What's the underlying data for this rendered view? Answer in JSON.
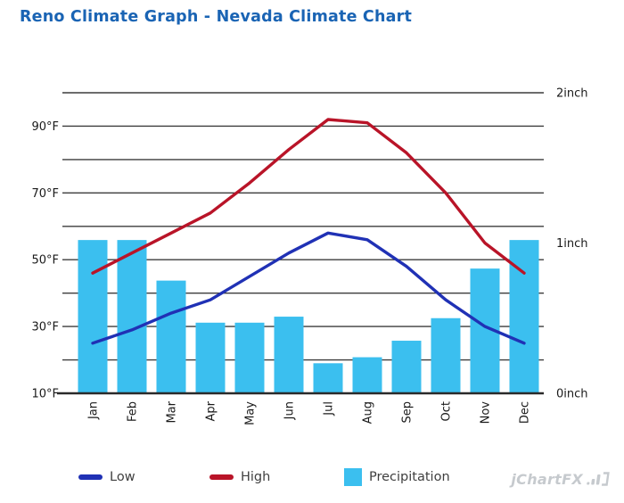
{
  "title": "Reno Climate Graph - Nevada Climate Chart",
  "legend": {
    "low_label": "Low",
    "high_label": "High",
    "precip_label": "Precipitation"
  },
  "branding": {
    "logo_text": "jChartFX"
  },
  "colors": {
    "title": "#1A64B4",
    "high_line": "#B91428",
    "low_line": "#2031B5",
    "bar": "#3BBFEF",
    "grid": "#3C3C3C",
    "axis_line": "#2A2A2A",
    "axis_text": "#1A1A1A",
    "legend_text": "#3F3F3F",
    "logo": "#C6CACE",
    "background": "#FFFFFF"
  },
  "chart_data": {
    "type": "combo",
    "title": "Reno Climate Graph - Nevada Climate Chart",
    "categories": [
      "Jan",
      "Feb",
      "Mar",
      "Apr",
      "May",
      "Jun",
      "Jul",
      "Aug",
      "Sep",
      "Oct",
      "Nov",
      "Dec"
    ],
    "series": [
      {
        "name": "Precipitation",
        "type": "bar",
        "axis": "right",
        "unit": "inch",
        "values": [
          1.02,
          1.02,
          0.75,
          0.47,
          0.47,
          0.51,
          0.2,
          0.24,
          0.35,
          0.5,
          0.83,
          1.02
        ]
      },
      {
        "name": "Low",
        "type": "line",
        "axis": "left",
        "unit": "°F",
        "values": [
          25,
          29,
          34,
          38,
          45,
          52,
          58,
          56,
          48,
          38,
          30,
          25
        ]
      },
      {
        "name": "High",
        "type": "line",
        "axis": "left",
        "unit": "°F",
        "values": [
          46,
          52,
          58,
          64,
          73,
          83,
          92,
          91,
          82,
          70,
          55,
          46
        ]
      }
    ],
    "left_axis": {
      "unit": "°F",
      "min": 10,
      "max": 100,
      "grid_step": 10,
      "tick_labels": [
        "10°F",
        "30°F",
        "50°F",
        "70°F",
        "90°F"
      ],
      "label_values": [
        10,
        30,
        50,
        70,
        90
      ]
    },
    "right_axis": {
      "unit": "inch",
      "min": 0,
      "max": 2,
      "tick_labels": [
        "0inch",
        "1inch",
        "2inch"
      ],
      "label_values": [
        0,
        1,
        2
      ]
    },
    "grid": true,
    "legend_position": "bottom",
    "x_label_rotation": -90
  }
}
